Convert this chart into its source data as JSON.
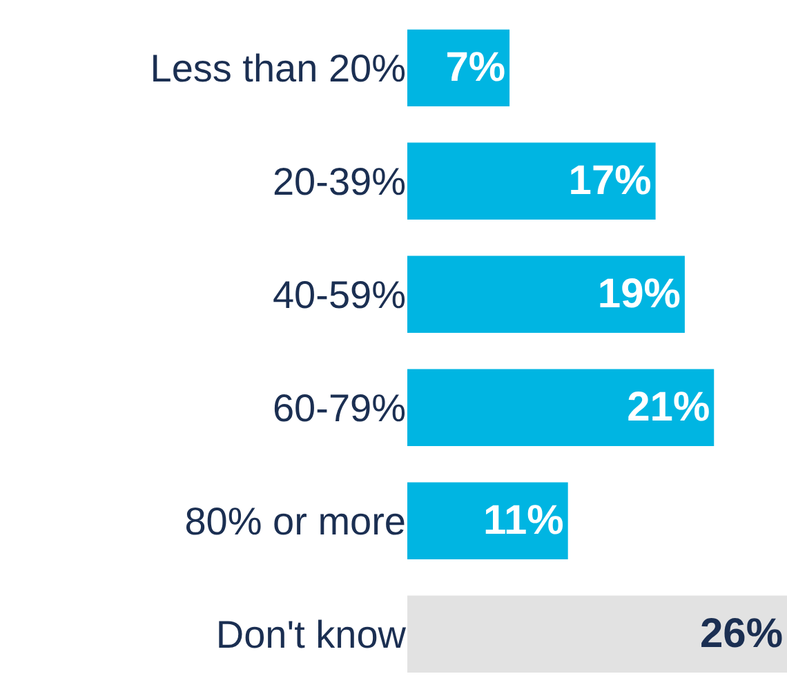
{
  "chart_data": {
    "type": "bar",
    "orientation": "horizontal",
    "categories": [
      "Less than 20%",
      "20-39%",
      "40-59%",
      "60-79%",
      "80% or more",
      "Don't know"
    ],
    "values": [
      7,
      17,
      19,
      21,
      11,
      26
    ],
    "colors": [
      "#00b5e2",
      "#00b5e2",
      "#00b5e2",
      "#00b5e2",
      "#00b5e2",
      "#e2e2e2"
    ],
    "value_labels": [
      "7%",
      "17%",
      "19%",
      "21%",
      "11%",
      "26%"
    ],
    "tick_labels": "y",
    "grid": false,
    "legend": false
  }
}
